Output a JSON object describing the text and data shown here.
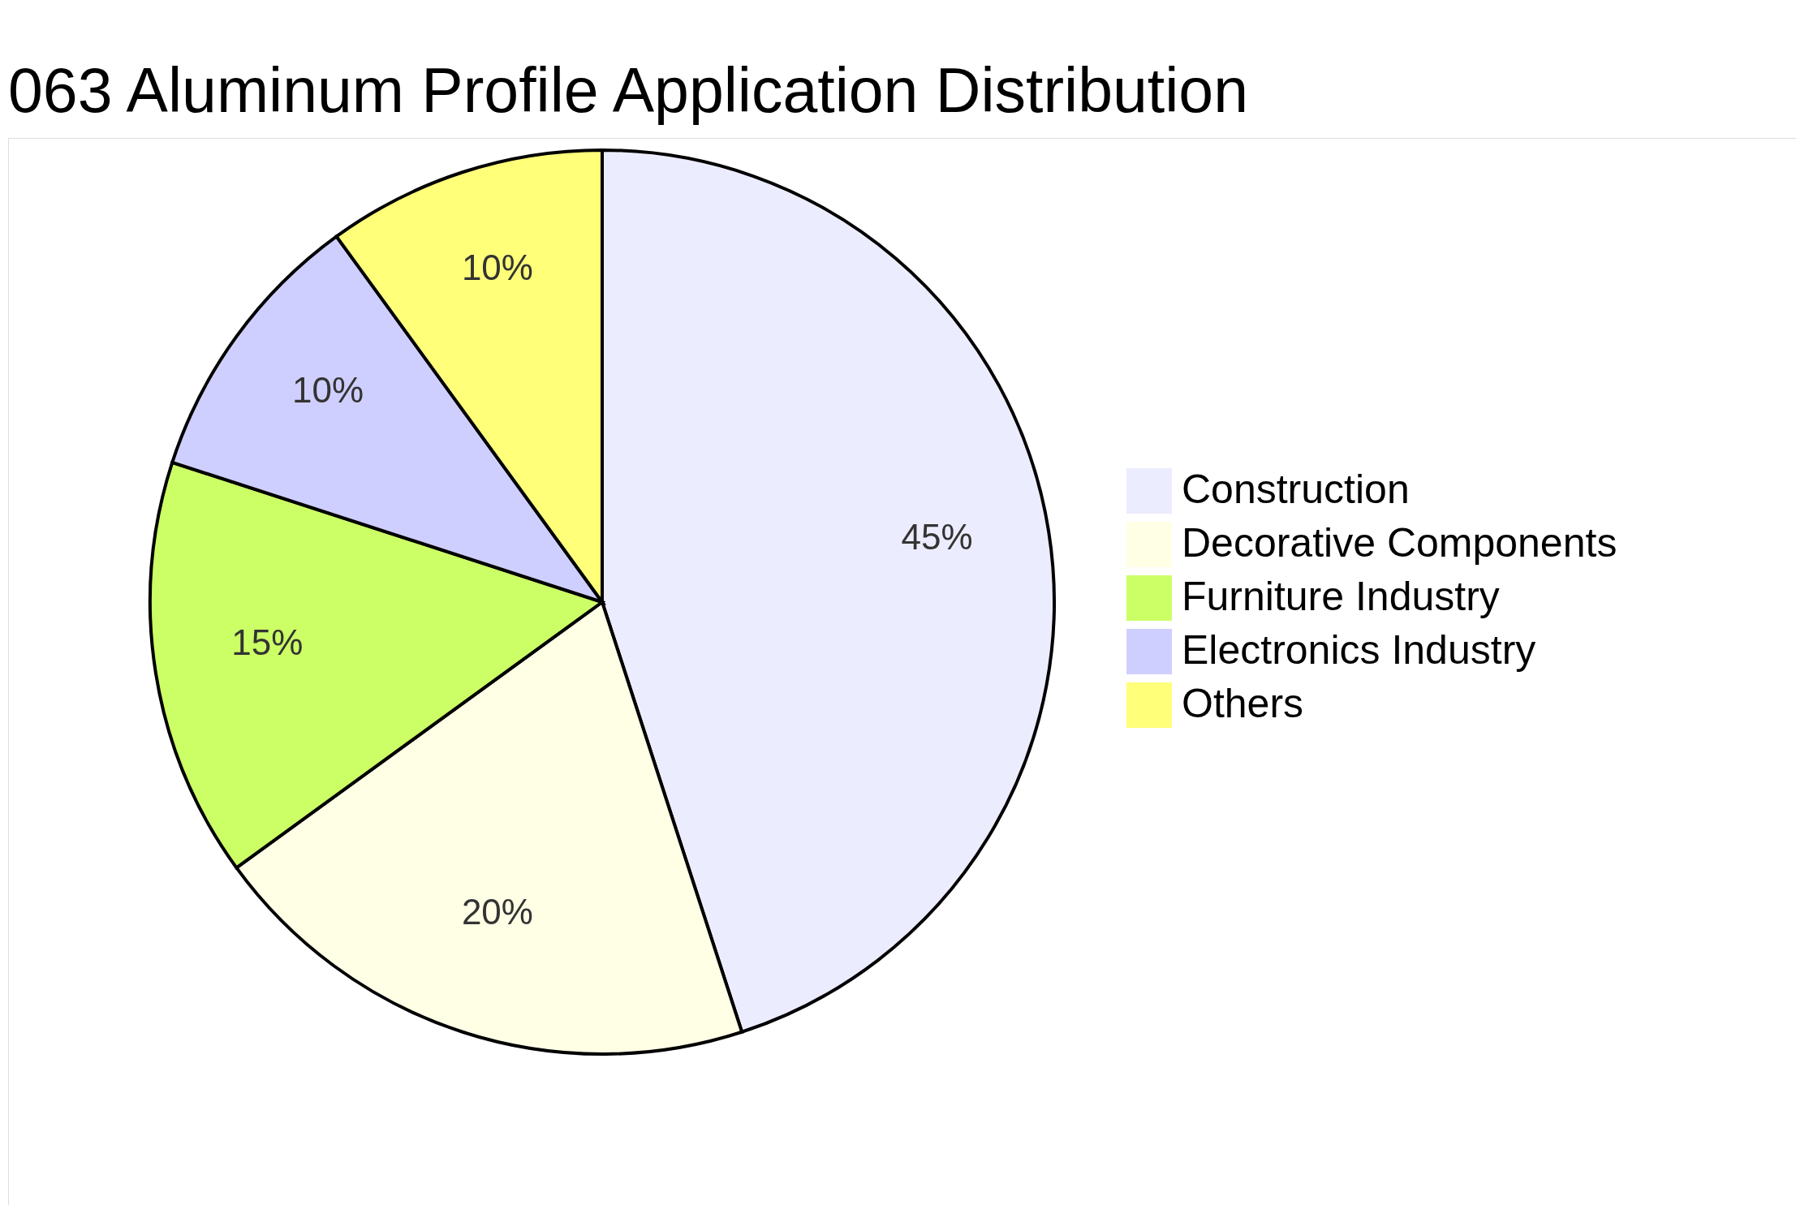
{
  "chart_data": {
    "type": "pie",
    "title": "063 Aluminum Profile Application Distribution",
    "categories": [
      "Construction",
      "Decorative Components",
      "Furniture Industry",
      "Electronics Industry",
      "Others"
    ],
    "values": [
      45,
      20,
      15,
      10,
      10
    ],
    "colors": [
      "#ececff",
      "#ffffe6",
      "#ccff66",
      "#cfcfff",
      "#ffff7a"
    ],
    "value_labels": [
      "45%",
      "20%",
      "15%",
      "10%",
      "10%"
    ],
    "legend": "right"
  }
}
